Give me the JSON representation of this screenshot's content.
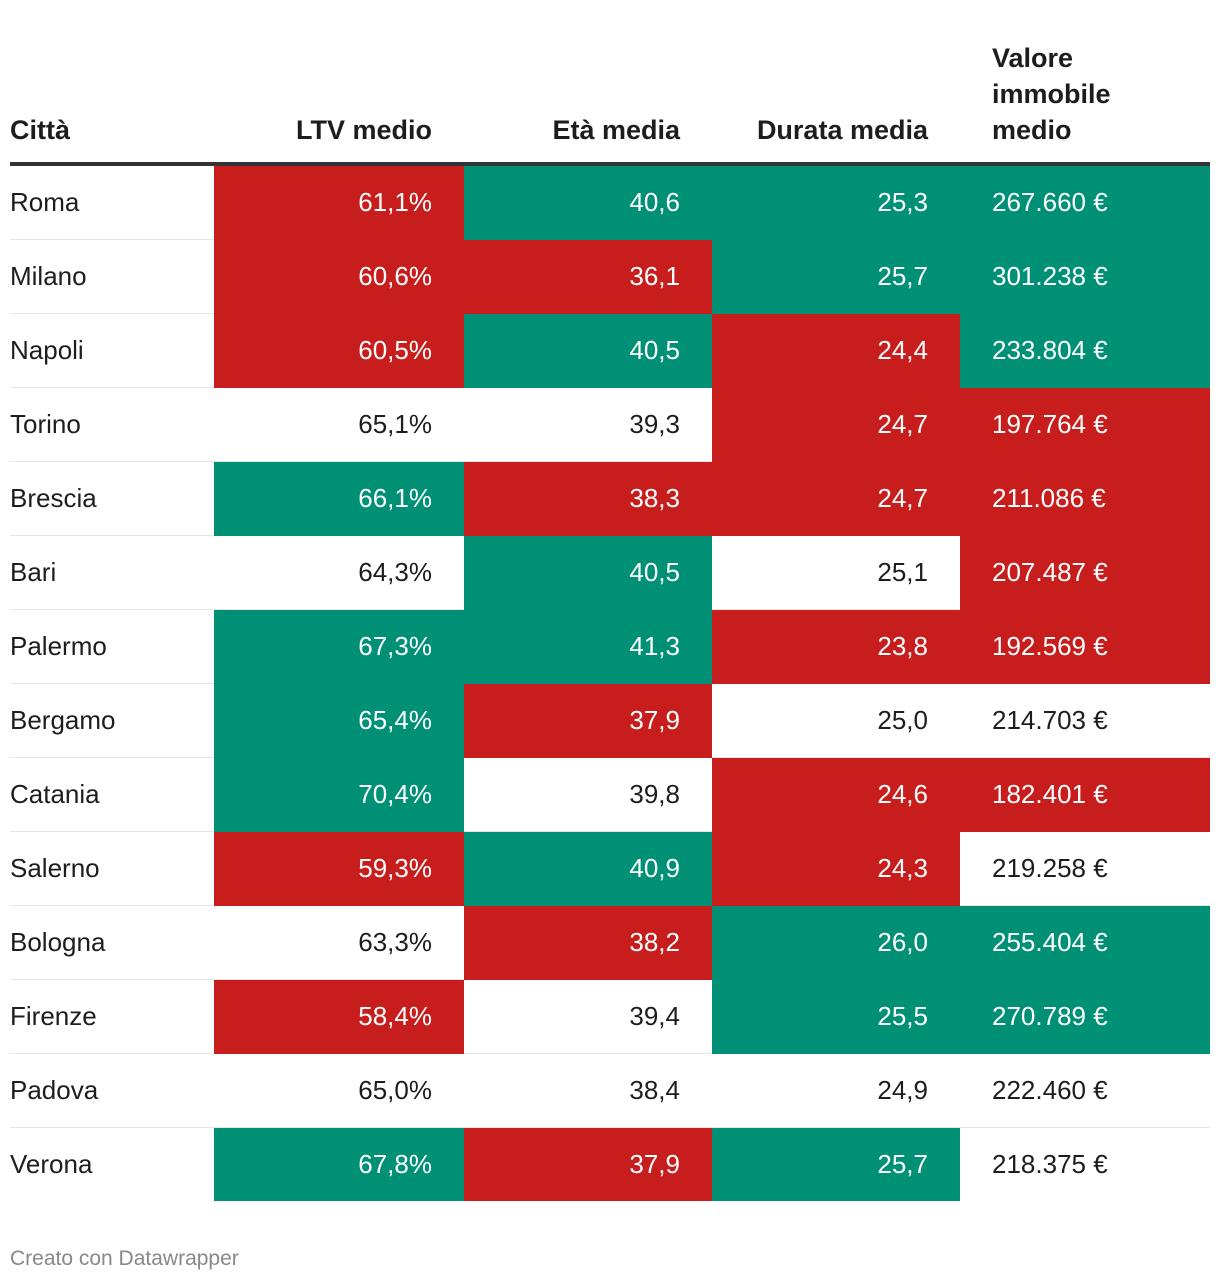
{
  "colors": {
    "low": "#c71e1d",
    "high": "#009076",
    "neutral": "#ffffff"
  },
  "chart_data": {
    "type": "table",
    "columns": [
      "Città",
      "LTV medio",
      "Età media",
      "Durata media",
      "Valore immobile medio"
    ],
    "rows": [
      {
        "city": "Roma",
        "ltv": "61,1%",
        "ltv_c": "red",
        "eta": "40,6",
        "eta_c": "green",
        "dur": "25,3",
        "dur_c": "green",
        "val": "267.660 €",
        "val_c": "green"
      },
      {
        "city": "Milano",
        "ltv": "60,6%",
        "ltv_c": "red",
        "eta": "36,1",
        "eta_c": "red",
        "dur": "25,7",
        "dur_c": "green",
        "val": "301.238 €",
        "val_c": "green"
      },
      {
        "city": "Napoli",
        "ltv": "60,5%",
        "ltv_c": "red",
        "eta": "40,5",
        "eta_c": "green",
        "dur": "24,4",
        "dur_c": "red",
        "val": "233.804 €",
        "val_c": "green"
      },
      {
        "city": "Torino",
        "ltv": "65,1%",
        "ltv_c": "none",
        "eta": "39,3",
        "eta_c": "none",
        "dur": "24,7",
        "dur_c": "red",
        "val": "197.764 €",
        "val_c": "red"
      },
      {
        "city": "Brescia",
        "ltv": "66,1%",
        "ltv_c": "green",
        "eta": "38,3",
        "eta_c": "red",
        "dur": "24,7",
        "dur_c": "red",
        "val": "211.086 €",
        "val_c": "red"
      },
      {
        "city": "Bari",
        "ltv": "64,3%",
        "ltv_c": "none",
        "eta": "40,5",
        "eta_c": "green",
        "dur": "25,1",
        "dur_c": "none",
        "val": "207.487 €",
        "val_c": "red"
      },
      {
        "city": "Palermo",
        "ltv": "67,3%",
        "ltv_c": "green",
        "eta": "41,3",
        "eta_c": "green",
        "dur": "23,8",
        "dur_c": "red",
        "val": "192.569 €",
        "val_c": "red"
      },
      {
        "city": "Bergamo",
        "ltv": "65,4%",
        "ltv_c": "green",
        "eta": "37,9",
        "eta_c": "red",
        "dur": "25,0",
        "dur_c": "none",
        "val": "214.703 €",
        "val_c": "none"
      },
      {
        "city": "Catania",
        "ltv": "70,4%",
        "ltv_c": "green",
        "eta": "39,8",
        "eta_c": "none",
        "dur": "24,6",
        "dur_c": "red",
        "val": "182.401 €",
        "val_c": "red"
      },
      {
        "city": "Salerno",
        "ltv": "59,3%",
        "ltv_c": "red",
        "eta": "40,9",
        "eta_c": "green",
        "dur": "24,3",
        "dur_c": "red",
        "val": "219.258 €",
        "val_c": "none"
      },
      {
        "city": "Bologna",
        "ltv": "63,3%",
        "ltv_c": "none",
        "eta": "38,2",
        "eta_c": "red",
        "dur": "26,0",
        "dur_c": "green",
        "val": "255.404 €",
        "val_c": "green"
      },
      {
        "city": "Firenze",
        "ltv": "58,4%",
        "ltv_c": "red",
        "eta": "39,4",
        "eta_c": "none",
        "dur": "25,5",
        "dur_c": "green",
        "val": "270.789 €",
        "val_c": "green"
      },
      {
        "city": "Padova",
        "ltv": "65,0%",
        "ltv_c": "none",
        "eta": "38,4",
        "eta_c": "none",
        "dur": "24,9",
        "dur_c": "none",
        "val": "222.460 €",
        "val_c": "none"
      },
      {
        "city": "Verona",
        "ltv": "67,8%",
        "ltv_c": "green",
        "eta": "37,9",
        "eta_c": "red",
        "dur": "25,7",
        "dur_c": "green",
        "val": "218.375 €",
        "val_c": "none"
      }
    ]
  },
  "header": {
    "city": "Città",
    "ltv": "LTV medio",
    "eta": "Età media",
    "dur": "Durata media",
    "val_line1": "Valore",
    "val_line2": "immobile",
    "val_line3": "medio"
  },
  "footer": {
    "credit": "Creato con Datawrapper"
  }
}
